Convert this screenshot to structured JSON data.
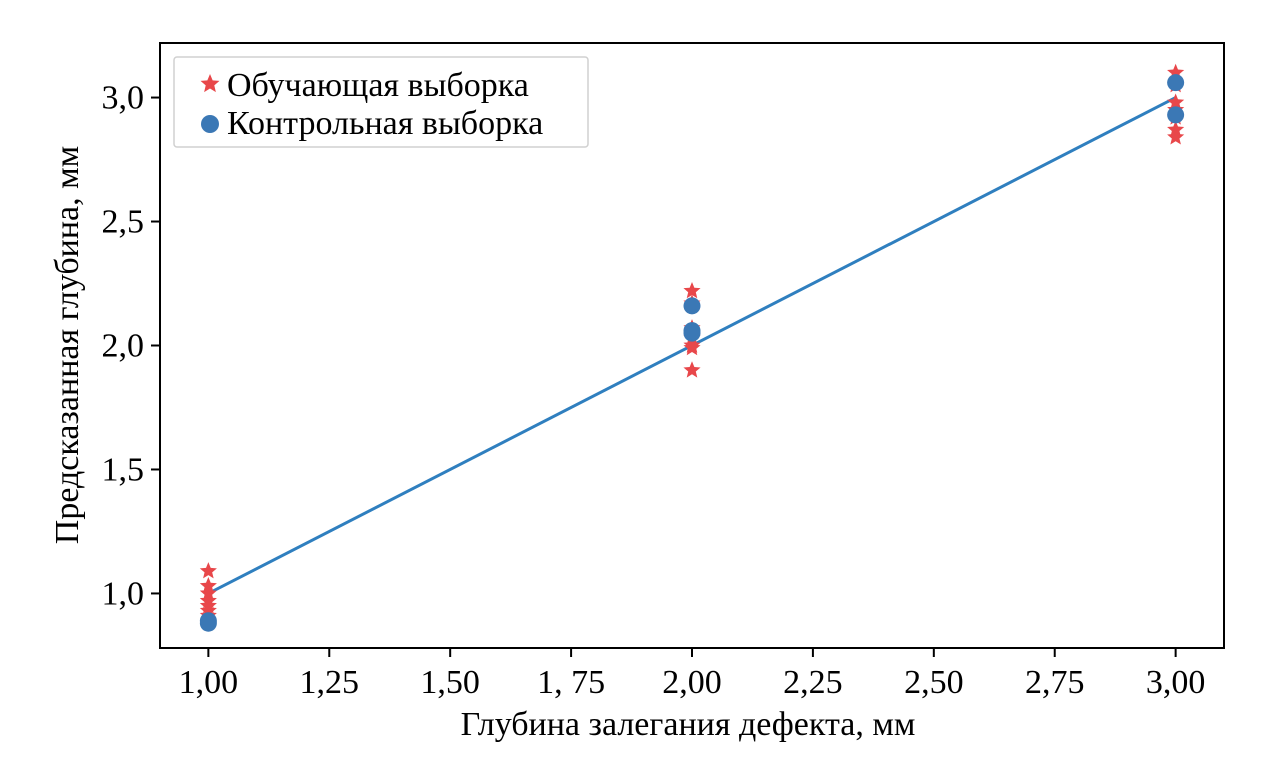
{
  "chart_data": {
    "type": "scatter",
    "title": "",
    "xlabel": "Глубина залегания дефекта, мм",
    "ylabel": "Предсказанная глубина, мм",
    "xlim": [
      0.9,
      3.1
    ],
    "ylim": [
      0.78,
      3.22
    ],
    "x_ticks": [
      1.0,
      1.25,
      1.5,
      1.75,
      2.0,
      2.25,
      2.5,
      2.75,
      3.0
    ],
    "x_tick_labels": [
      "1,00",
      "1,25",
      "1,50",
      "1, 75",
      "2,00",
      "2,25",
      "2,50",
      "2,75",
      "3,00"
    ],
    "y_ticks": [
      1.0,
      1.5,
      2.0,
      2.5,
      3.0
    ],
    "y_tick_labels": [
      "1,0",
      "1,5",
      "2,0",
      "2,5",
      "3,0"
    ],
    "grid": false,
    "legend_position": "top-left",
    "series": [
      {
        "name": "Обучающая выборка",
        "marker": "star",
        "color": "#e8474a",
        "points": [
          [
            1.0,
            1.09
          ],
          [
            1.0,
            1.03
          ],
          [
            1.0,
            1.0
          ],
          [
            1.0,
            0.97
          ],
          [
            1.0,
            0.95
          ],
          [
            1.0,
            0.93
          ],
          [
            1.0,
            0.91
          ],
          [
            2.0,
            2.22
          ],
          [
            2.0,
            2.17
          ],
          [
            2.0,
            2.07
          ],
          [
            2.0,
            2.03
          ],
          [
            2.0,
            2.0
          ],
          [
            2.0,
            1.99
          ],
          [
            2.0,
            1.9
          ],
          [
            3.0,
            3.1
          ],
          [
            3.0,
            3.05
          ],
          [
            3.0,
            2.98
          ],
          [
            3.0,
            2.95
          ],
          [
            3.0,
            2.92
          ],
          [
            3.0,
            2.87
          ],
          [
            3.0,
            2.84
          ]
        ]
      },
      {
        "name": "Контрольная выборка",
        "marker": "circle",
        "color": "#3b78b5",
        "points": [
          [
            1.0,
            0.89
          ],
          [
            1.0,
            0.88
          ],
          [
            2.0,
            2.16
          ],
          [
            2.0,
            2.05
          ],
          [
            2.0,
            2.06
          ],
          [
            3.0,
            3.06
          ],
          [
            3.0,
            2.93
          ]
        ]
      }
    ],
    "reference_line": {
      "color": "#2f7fbf",
      "points": [
        [
          1.0,
          1.0
        ],
        [
          3.0,
          3.0
        ]
      ]
    }
  }
}
